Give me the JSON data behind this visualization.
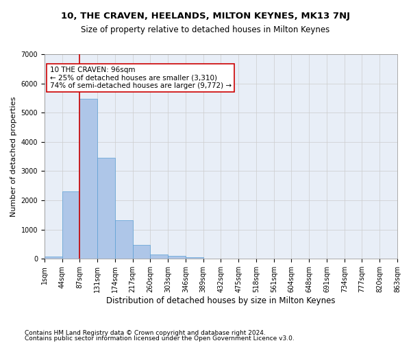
{
  "title": "10, THE CRAVEN, HEELANDS, MILTON KEYNES, MK13 7NJ",
  "subtitle": "Size of property relative to detached houses in Milton Keynes",
  "xlabel": "Distribution of detached houses by size in Milton Keynes",
  "ylabel": "Number of detached properties",
  "bar_values": [
    80,
    2300,
    5480,
    3450,
    1320,
    470,
    155,
    90,
    55,
    0,
    0,
    0,
    0,
    0,
    0,
    0,
    0,
    0,
    0,
    0
  ],
  "bar_labels": [
    "1sqm",
    "44sqm",
    "87sqm",
    "131sqm",
    "174sqm",
    "217sqm",
    "260sqm",
    "303sqm",
    "346sqm",
    "389sqm",
    "432sqm",
    "475sqm",
    "518sqm",
    "561sqm",
    "604sqm",
    "648sqm",
    "691sqm",
    "734sqm",
    "777sqm",
    "820sqm",
    "863sqm"
  ],
  "bar_color": "#aec6e8",
  "bar_edge_color": "#5a9fd4",
  "vline_x": 2,
  "vline_color": "#cc0000",
  "annotation_text": "10 THE CRAVEN: 96sqm\n← 25% of detached houses are smaller (3,310)\n74% of semi-detached houses are larger (9,772) →",
  "annotation_box_color": "#ffffff",
  "annotation_box_edge": "#cc0000",
  "ylim": [
    0,
    7000
  ],
  "yticks": [
    0,
    1000,
    2000,
    3000,
    4000,
    5000,
    6000,
    7000
  ],
  "grid_color": "#cccccc",
  "background_color": "#e8eef7",
  "footer_line1": "Contains HM Land Registry data © Crown copyright and database right 2024.",
  "footer_line2": "Contains public sector information licensed under the Open Government Licence v3.0.",
  "title_fontsize": 9.5,
  "subtitle_fontsize": 8.5,
  "xlabel_fontsize": 8.5,
  "ylabel_fontsize": 8,
  "tick_fontsize": 7,
  "annotation_fontsize": 7.5,
  "footer_fontsize": 6.5
}
